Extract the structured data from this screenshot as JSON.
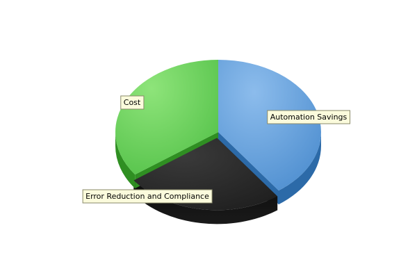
{
  "chart_data": {
    "type": "pie",
    "style": "3d-exploded",
    "title": "",
    "legend": "none",
    "slices": [
      {
        "label": "Automation Savings",
        "value": 40,
        "color": "#4f8fd0"
      },
      {
        "label": "Error Reduction and Compliance",
        "value": 25,
        "color": "#202020"
      },
      {
        "label": "Cost",
        "value": 35,
        "color": "#55c24a"
      }
    ]
  }
}
